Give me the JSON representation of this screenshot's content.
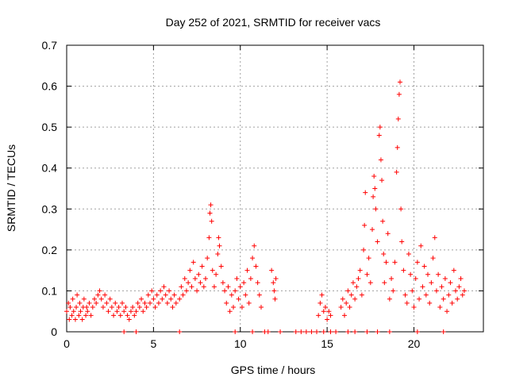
{
  "chart_data": {
    "type": "scatter",
    "title": "Day 252 of 2021, SRMTID for receiver vacs",
    "xlabel": "GPS time / hours",
    "ylabel": "SRMTID / TECUs",
    "xlim": [
      0,
      24
    ],
    "ylim": [
      0,
      0.7
    ],
    "x_ticks": [
      0,
      5,
      10,
      15,
      20
    ],
    "y_ticks": [
      0,
      0.1,
      0.2,
      0.3,
      0.4,
      0.5,
      0.6,
      0.7
    ],
    "x_tick_labels": [
      "0",
      "5",
      "10",
      "15",
      "20"
    ],
    "y_tick_labels": [
      "0",
      "0.1",
      "0.2",
      "0.3",
      "0.4",
      "0.5",
      "0.6",
      "0.7"
    ],
    "grid": true,
    "marker": "plus",
    "series_color": "#ff0000",
    "series": [
      {
        "name": "SRMTID",
        "points": [
          [
            0.0,
            0.05
          ],
          [
            0.1,
            0.07
          ],
          [
            0.15,
            0.03
          ],
          [
            0.2,
            0.06
          ],
          [
            0.3,
            0.04
          ],
          [
            0.35,
            0.08
          ],
          [
            0.4,
            0.05
          ],
          [
            0.5,
            0.03
          ],
          [
            0.55,
            0.06
          ],
          [
            0.6,
            0.09
          ],
          [
            0.7,
            0.04
          ],
          [
            0.75,
            0.07
          ],
          [
            0.8,
            0.05
          ],
          [
            0.9,
            0.03
          ],
          [
            0.95,
            0.06
          ],
          [
            1.0,
            0.08
          ],
          [
            1.1,
            0.04
          ],
          [
            1.15,
            0.06
          ],
          [
            1.2,
            0.05
          ],
          [
            1.3,
            0.07
          ],
          [
            1.4,
            0.04
          ],
          [
            1.5,
            0.06
          ],
          [
            1.6,
            0.08
          ],
          [
            1.7,
            0.07
          ],
          [
            1.8,
            0.09
          ],
          [
            1.9,
            0.1
          ],
          [
            2.0,
            0.08
          ],
          [
            2.1,
            0.06
          ],
          [
            2.2,
            0.09
          ],
          [
            2.3,
            0.07
          ],
          [
            2.4,
            0.05
          ],
          [
            2.5,
            0.08
          ],
          [
            2.6,
            0.06
          ],
          [
            2.7,
            0.04
          ],
          [
            2.8,
            0.07
          ],
          [
            2.9,
            0.05
          ],
          [
            3.0,
            0.06
          ],
          [
            3.1,
            0.04
          ],
          [
            3.2,
            0.07
          ],
          [
            3.3,
            0.05
          ],
          [
            3.4,
            0.06
          ],
          [
            3.5,
            0.04
          ],
          [
            3.6,
            0.03
          ],
          [
            3.7,
            0.05
          ],
          [
            3.8,
            0.06
          ],
          [
            3.9,
            0.04
          ],
          [
            4.0,
            0.05
          ],
          [
            4.1,
            0.07
          ],
          [
            4.2,
            0.06
          ],
          [
            4.3,
            0.08
          ],
          [
            4.4,
            0.05
          ],
          [
            4.5,
            0.07
          ],
          [
            4.6,
            0.06
          ],
          [
            4.7,
            0.09
          ],
          [
            4.8,
            0.07
          ],
          [
            4.9,
            0.1
          ],
          [
            5.0,
            0.08
          ],
          [
            5.1,
            0.06
          ],
          [
            5.2,
            0.09
          ],
          [
            5.3,
            0.07
          ],
          [
            5.4,
            0.1
          ],
          [
            5.5,
            0.08
          ],
          [
            5.6,
            0.11
          ],
          [
            5.7,
            0.09
          ],
          [
            5.8,
            0.07
          ],
          [
            5.9,
            0.1
          ],
          [
            6.0,
            0.08
          ],
          [
            6.1,
            0.06
          ],
          [
            6.2,
            0.09
          ],
          [
            6.3,
            0.07
          ],
          [
            6.5,
            0.08
          ],
          [
            6.6,
            0.11
          ],
          [
            6.7,
            0.09
          ],
          [
            6.8,
            0.13
          ],
          [
            6.9,
            0.1
          ],
          [
            7.0,
            0.12
          ],
          [
            7.1,
            0.15
          ],
          [
            7.2,
            0.11
          ],
          [
            7.3,
            0.17
          ],
          [
            7.4,
            0.13
          ],
          [
            7.5,
            0.1
          ],
          [
            7.6,
            0.14
          ],
          [
            7.7,
            0.12
          ],
          [
            7.8,
            0.16
          ],
          [
            7.9,
            0.11
          ],
          [
            8.0,
            0.13
          ],
          [
            8.1,
            0.18
          ],
          [
            8.2,
            0.23
          ],
          [
            8.25,
            0.29
          ],
          [
            8.3,
            0.31
          ],
          [
            8.35,
            0.27
          ],
          [
            8.4,
            0.15
          ],
          [
            8.5,
            0.11
          ],
          [
            8.6,
            0.14
          ],
          [
            8.7,
            0.19
          ],
          [
            8.75,
            0.23
          ],
          [
            8.8,
            0.21
          ],
          [
            8.9,
            0.16
          ],
          [
            9.0,
            0.12
          ],
          [
            9.1,
            0.1
          ],
          [
            9.2,
            0.07
          ],
          [
            9.3,
            0.11
          ],
          [
            9.4,
            0.05
          ],
          [
            9.5,
            0.09
          ],
          [
            9.6,
            0.06
          ],
          [
            9.7,
            0.1
          ],
          [
            9.8,
            0.13
          ],
          [
            9.9,
            0.08
          ],
          [
            10.0,
            0.11
          ],
          [
            10.1,
            0.06
          ],
          [
            10.2,
            0.12
          ],
          [
            10.3,
            0.09
          ],
          [
            10.4,
            0.15
          ],
          [
            10.5,
            0.07
          ],
          [
            10.6,
            0.13
          ],
          [
            10.7,
            0.18
          ],
          [
            10.8,
            0.21
          ],
          [
            10.9,
            0.16
          ],
          [
            11.0,
            0.12
          ],
          [
            11.1,
            0.09
          ],
          [
            11.2,
            0.06
          ],
          [
            11.8,
            0.15
          ],
          [
            11.9,
            0.12
          ],
          [
            11.95,
            0.1
          ],
          [
            12.0,
            0.08
          ],
          [
            12.05,
            0.13
          ],
          [
            14.5,
            0.04
          ],
          [
            14.6,
            0.07
          ],
          [
            14.7,
            0.09
          ],
          [
            14.8,
            0.05
          ],
          [
            14.9,
            0.06
          ],
          [
            15.0,
            0.03
          ],
          [
            15.1,
            0.05
          ],
          [
            15.2,
            0.04
          ],
          [
            15.8,
            0.06
          ],
          [
            15.9,
            0.08
          ],
          [
            16.0,
            0.04
          ],
          [
            16.1,
            0.07
          ],
          [
            16.2,
            0.1
          ],
          [
            16.3,
            0.06
          ],
          [
            16.4,
            0.09
          ],
          [
            16.5,
            0.12
          ],
          [
            16.6,
            0.08
          ],
          [
            16.7,
            0.11
          ],
          [
            16.8,
            0.13
          ],
          [
            16.9,
            0.15
          ],
          [
            17.0,
            0.09
          ],
          [
            17.1,
            0.2
          ],
          [
            17.15,
            0.26
          ],
          [
            17.2,
            0.34
          ],
          [
            17.3,
            0.14
          ],
          [
            17.4,
            0.18
          ],
          [
            17.5,
            0.12
          ],
          [
            17.6,
            0.25
          ],
          [
            17.65,
            0.33
          ],
          [
            17.7,
            0.38
          ],
          [
            17.75,
            0.35
          ],
          [
            17.8,
            0.3
          ],
          [
            17.9,
            0.22
          ],
          [
            18.0,
            0.48
          ],
          [
            18.05,
            0.5
          ],
          [
            18.1,
            0.42
          ],
          [
            18.15,
            0.37
          ],
          [
            18.2,
            0.27
          ],
          [
            18.25,
            0.19
          ],
          [
            18.3,
            0.12
          ],
          [
            18.4,
            0.17
          ],
          [
            18.5,
            0.24
          ],
          [
            18.6,
            0.08
          ],
          [
            18.7,
            0.13
          ],
          [
            18.8,
            0.1
          ],
          [
            18.9,
            0.17
          ],
          [
            19.0,
            0.39
          ],
          [
            19.05,
            0.45
          ],
          [
            19.1,
            0.52
          ],
          [
            19.15,
            0.58
          ],
          [
            19.2,
            0.61
          ],
          [
            19.25,
            0.3
          ],
          [
            19.3,
            0.22
          ],
          [
            19.4,
            0.15
          ],
          [
            19.5,
            0.09
          ],
          [
            19.6,
            0.07
          ],
          [
            19.7,
            0.19
          ],
          [
            19.8,
            0.14
          ],
          [
            19.9,
            0.1
          ],
          [
            20.0,
            0.06
          ],
          [
            20.1,
            0.13
          ],
          [
            20.2,
            0.17
          ],
          [
            20.3,
            0.08
          ],
          [
            20.4,
            0.21
          ],
          [
            20.5,
            0.11
          ],
          [
            20.6,
            0.16
          ],
          [
            20.7,
            0.09
          ],
          [
            20.8,
            0.14
          ],
          [
            20.9,
            0.07
          ],
          [
            21.0,
            0.12
          ],
          [
            21.1,
            0.18
          ],
          [
            21.2,
            0.23
          ],
          [
            21.3,
            0.1
          ],
          [
            21.4,
            0.14
          ],
          [
            21.5,
            0.06
          ],
          [
            21.6,
            0.11
          ],
          [
            21.7,
            0.08
          ],
          [
            21.8,
            0.13
          ],
          [
            21.9,
            0.05
          ],
          [
            22.0,
            0.09
          ],
          [
            22.1,
            0.12
          ],
          [
            22.2,
            0.07
          ],
          [
            22.3,
            0.15
          ],
          [
            22.4,
            0.1
          ],
          [
            22.5,
            0.08
          ],
          [
            22.6,
            0.11
          ],
          [
            22.7,
            0.13
          ],
          [
            22.8,
            0.09
          ],
          [
            22.9,
            0.1
          ],
          [
            3.3,
            0.0
          ],
          [
            4.0,
            0.0
          ],
          [
            6.5,
            0.0
          ],
          [
            9.7,
            0.0
          ],
          [
            10.7,
            0.0
          ],
          [
            11.4,
            0.0
          ],
          [
            11.6,
            0.0
          ],
          [
            12.3,
            0.0
          ],
          [
            13.2,
            0.0
          ],
          [
            13.5,
            0.0
          ],
          [
            13.8,
            0.0
          ],
          [
            14.1,
            0.0
          ],
          [
            14.4,
            0.0
          ],
          [
            14.8,
            0.0
          ],
          [
            15.2,
            0.0
          ],
          [
            15.5,
            0.0
          ],
          [
            16.2,
            0.0
          ],
          [
            16.6,
            0.0
          ],
          [
            17.3,
            0.0
          ],
          [
            17.9,
            0.0
          ],
          [
            18.6,
            0.0
          ],
          [
            20.2,
            0.0
          ],
          [
            21.7,
            0.0
          ]
        ]
      }
    ]
  }
}
